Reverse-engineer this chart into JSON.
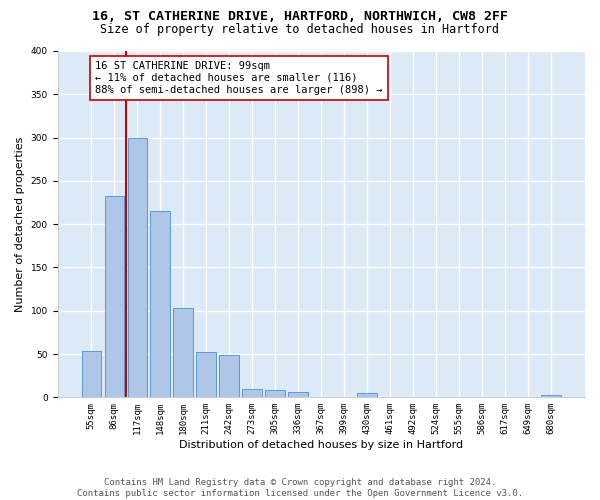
{
  "title1": "16, ST CATHERINE DRIVE, HARTFORD, NORTHWICH, CW8 2FF",
  "title2": "Size of property relative to detached houses in Hartford",
  "xlabel": "Distribution of detached houses by size in Hartford",
  "ylabel": "Number of detached properties",
  "categories": [
    "55sqm",
    "86sqm",
    "117sqm",
    "148sqm",
    "180sqm",
    "211sqm",
    "242sqm",
    "273sqm",
    "305sqm",
    "336sqm",
    "367sqm",
    "399sqm",
    "430sqm",
    "461sqm",
    "492sqm",
    "524sqm",
    "555sqm",
    "586sqm",
    "617sqm",
    "649sqm",
    "680sqm"
  ],
  "bar_heights": [
    53,
    232,
    300,
    215,
    103,
    52,
    49,
    10,
    9,
    6,
    0,
    0,
    5,
    0,
    0,
    0,
    0,
    0,
    0,
    0,
    3
  ],
  "bar_color": "#aec6e8",
  "bar_edge_color": "#5b9bd5",
  "vline_x_index": 1.5,
  "vline_color": "#cc0000",
  "annotation_text": "16 ST CATHERINE DRIVE: 99sqm\n← 11% of detached houses are smaller (116)\n88% of semi-detached houses are larger (898) →",
  "annotation_box_color": "#ffffff",
  "annotation_box_edge_color": "#cc0000",
  "ylim": [
    0,
    400
  ],
  "yticks": [
    0,
    50,
    100,
    150,
    200,
    250,
    300,
    350,
    400
  ],
  "footer_text": "Contains HM Land Registry data © Crown copyright and database right 2024.\nContains public sector information licensed under the Open Government Licence v3.0.",
  "bg_color": "#dce9f7",
  "grid_color": "#ffffff",
  "fig_bg_color": "#ffffff",
  "title1_fontsize": 9.5,
  "title2_fontsize": 8.5,
  "xlabel_fontsize": 8,
  "ylabel_fontsize": 8,
  "tick_fontsize": 6.5,
  "annotation_fontsize": 7.5,
  "footer_fontsize": 6.5
}
